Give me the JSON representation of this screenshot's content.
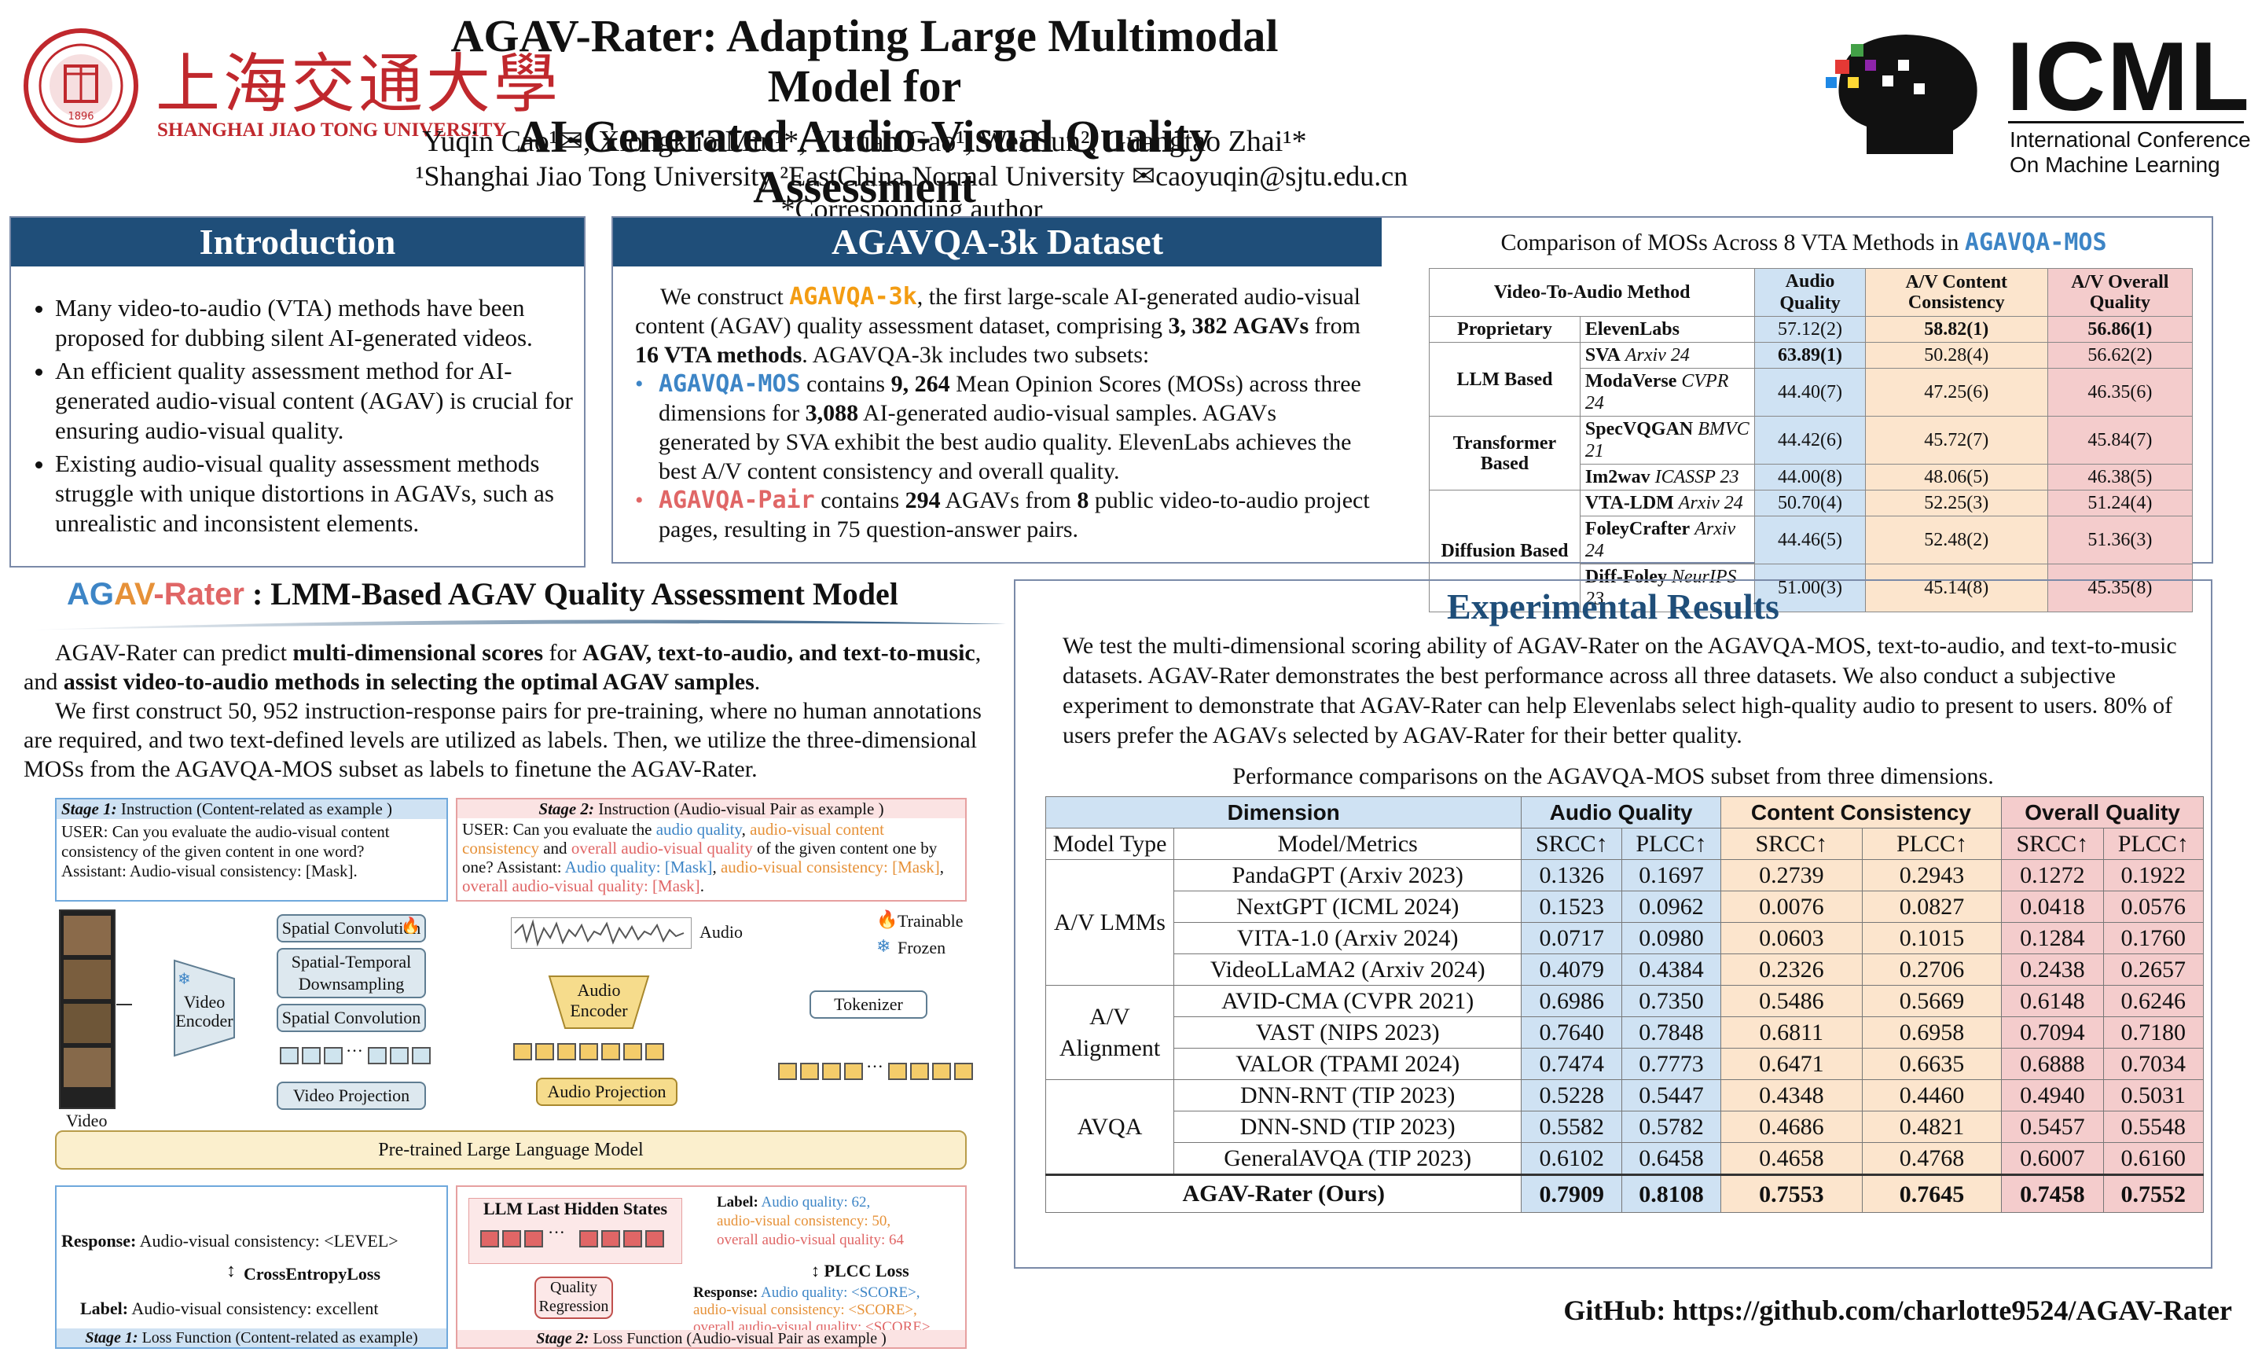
{
  "header": {
    "title_line1": "AGAV-Rater: Adapting Large Multimodal Model for",
    "title_line2": "AI-Generated Audio-Visual Quality Assessment",
    "authors": "Yuqin Cao¹✉, Xiongkuo Min¹*, Yixuan Gao¹, Wei Sun², Guangtao Zhai¹*",
    "affiliations": "¹Shanghai Jiao Tong University ²EastChina Normal University ✉caoyuqin@sjtu.edu.cn *Corresponding author",
    "left_logo_cn": "上海交通大學",
    "left_logo_en": "SHANGHAI JIAO TONG UNIVERSITY",
    "right_logo_main": "ICML",
    "right_logo_sub1": "International Conference",
    "right_logo_sub2": "On Machine Learning"
  },
  "intro": {
    "heading": "Introduction",
    "bullets": [
      "Many video-to-audio (VTA) methods have been proposed for dubbing silent AI-generated videos.",
      "An efficient quality assessment method for AI-generated audio-visual content (AGAV) is crucial for ensuring audio-visual quality.",
      "Existing audio-visual quality assessment methods struggle with unique distortions in AGAVs, such as unrealistic and inconsistent elements."
    ]
  },
  "dataset": {
    "heading": "AGAVQA-3k Dataset",
    "p_a": "We construct ",
    "name": "AGAVQA-3k",
    "p_b": ", the first large-scale AI-generated audio-visual content (AGAV) quality assessment dataset, comprising ",
    "count": "3, 382",
    "p_c": "AGAVs",
    "p_d": " from ",
    "methods": "16 VTA methods",
    "p_e": ".  AGAVQA-3k includes two subsets:",
    "mos_name": "AGAVQA-MOS",
    "mos_a": " contains ",
    "mos_count": "9, 264",
    "mos_b": " Mean Opinion Scores (MOSs) across three dimensions for ",
    "mos_samples": "3,088",
    "mos_c": " AI-generated audio-visual samples. AGAVs generated by SVA exhibit the best audio quality. ElevenLabs achieves the best A/V content consistency and overall quality.",
    "pair_name": "AGAVQA-Pair",
    "pair_a": " contains ",
    "pair_count": "294",
    "pair_b": " AGAVs from ",
    "pair_pages": "8",
    "pair_c": " public video-to-audio project pages, resulting in 75 question-answer pairs."
  },
  "comparison": {
    "caption": "Comparison of MOSs Across 8 VTA Methods in ",
    "caption_name": "AGAVQA-MOS",
    "headers": [
      "Video-To-Audio Method",
      "Audio Quality",
      "A/V Content Consistency",
      "A/V Overall Quality"
    ],
    "groups": [
      {
        "group": "Proprietary",
        "rows": [
          {
            "method": "ElevenLabs",
            "venue": "",
            "aq": "57.12(2)",
            "cc": "58.82(1)",
            "oq": "56.86(1)"
          }
        ]
      },
      {
        "group": "LLM Based",
        "rows": [
          {
            "method": "SVA",
            "venue": "Arxiv 24",
            "aq": "63.89(1)",
            "cc": "50.28(4)",
            "oq": "56.62(2)"
          },
          {
            "method": "ModaVerse",
            "venue": "CVPR 24",
            "aq": "44.40(7)",
            "cc": "47.25(6)",
            "oq": "46.35(6)"
          }
        ]
      },
      {
        "group": "Transformer Based",
        "rows": [
          {
            "method": "SpecVQGAN",
            "venue": "BMVC 21",
            "aq": "44.42(6)",
            "cc": "45.72(7)",
            "oq": "45.84(7)"
          },
          {
            "method": "Im2wav",
            "venue": "ICASSP 23",
            "aq": "44.00(8)",
            "cc": "48.06(5)",
            "oq": "46.38(5)"
          }
        ]
      },
      {
        "group": "Diffusion Based",
        "rows": [
          {
            "method": "VTA-LDM",
            "venue": "Arxiv 24",
            "aq": "50.70(4)",
            "cc": "52.25(3)",
            "oq": "51.24(4)"
          },
          {
            "method": "FoleyCrafter",
            "venue": "Arxiv 24",
            "aq": "44.46(5)",
            "cc": "52.48(2)",
            "oq": "51.36(3)"
          },
          {
            "method": "Diff-Foley",
            "venue": "NeurIPS 23",
            "aq": "51.00(3)",
            "cc": "45.14(8)",
            "oq": "45.35(8)"
          }
        ]
      }
    ]
  },
  "model": {
    "heading_ag": "AG",
    "heading_av": "AV",
    "heading_rater": "-Rater",
    "heading_rest": " : LMM-Based AGAV Quality Assessment Model",
    "p1_a": "AGAV-Rater can predict ",
    "p1_b": "multi-dimensional scores",
    "p1_c": " for ",
    "p1_d": "AGAV, text-to-audio, and text-to-music",
    "p1_e": ", and ",
    "p1_f": "assist video-to-audio methods in selecting the optimal AGAV samples",
    "p1_g": ".",
    "p2": "We first construct 50, 952 instruction-response pairs for pre-training, where no human annotations are required, and two text-defined levels are utilized as labels. Then, we utilize the three-dimensional MOSs from the AGAVQA-MOS subset as labels to finetune the AGAV-Rater."
  },
  "diagram": {
    "s1_title_a": "Stage 1:",
    "s1_title_b": " Instruction (Content-related as example )",
    "s1_text": "USER: Can you evaluate the audio-visual content consistency of the given content in one word?",
    "s1_asst": "Assistant: Audio-visual consistency: [Mask].",
    "s2_title_a": "Stage 2:",
    "s2_title_b": " Instruction (Audio-visual Pair as example )",
    "s2_u1": "USER: Can you evaluate the ",
    "s2_aq": "audio quality",
    "s2_sep": ", ",
    "s2_cc": "audio-visual content consistency",
    "s2_and": " and ",
    "s2_oq": "overall audio-visual quality",
    "s2_u2": " of the given content one by one? Assistant: ",
    "s2_aq2": "Audio quality: [Mask]",
    "s2_cc2": "audio-visual consistency: [Mask]",
    "s2_oq2": "overall audio-visual quality: [Mask]",
    "s2_dot": ".",
    "video_label": "Video",
    "video_encoder": "Video Encoder",
    "spatial_conv1": "Spatial Convolution",
    "st_down": "Spatial-Temporal Downsampling",
    "spatial_conv2": "Spatial Convolution",
    "video_proj": "Video Projection",
    "audio_label": "Audio",
    "audio_encoder": "Audio Encoder",
    "audio_proj": "Audio Projection",
    "tokenizer": "Tokenizer",
    "trainable": "Trainable",
    "frozen": "Frozen",
    "llm": "Pre-trained Large Language Model",
    "resp_a": "Response:",
    "resp_b": " Audio-visual consistency: <LEVEL>",
    "ce_loss": "CrossEntropyLoss",
    "label_a": "Label:",
    "label_b": " Audio-visual consistency: excellent",
    "s1_loss_a": "Stage 1:",
    "s1_loss_b": " Loss Function (Content-related as example)",
    "llm_hidden": "LLM Last Hidden States",
    "lbl2_a": "Label:",
    "lbl2_aq": "Audio quality: 62,",
    "lbl2_cc": "audio-visual consistency: 50,",
    "lbl2_oq": "overall audio-visual quality: 64",
    "plcc": "PLCC Loss",
    "quality_reg": "Quality Regression",
    "resp2_a": "Response:",
    "resp2_aq": "Audio quality: <SCORE>,",
    "resp2_cc": "audio-visual consistency: <SCORE>,",
    "resp2_oq": "overall audio-visual quality: <SCORE>",
    "s2_loss_a": "Stage 2:",
    "s2_loss_b": " Loss Function (Audio-visual Pair as example )"
  },
  "results": {
    "heading": "Experimental Results",
    "text": "We test the multi-dimensional scoring ability of AGAV-Rater on the AGAVQA-MOS,  text-to-audio, and text-to-music datasets. AGAV-Rater demonstrates the best performance across all three datasets. We also conduct a subjective experiment to demonstrate that AGAV-Rater can help Elevenlabs select high-quality audio to present to users. 80% of users prefer the AGAVs selected by AGAV-Rater for their better quality.",
    "caption": "Performance comparisons on the AGAVQA-MOS subset from three dimensions.",
    "h_dimension": "Dimension",
    "h_aq": "Audio Quality",
    "h_cc": "Content Consistency",
    "h_oq": "Overall Quality",
    "h_type": "Model Type",
    "h_metrics": "Model/Metrics",
    "srcc": "SRCC↑",
    "plcc": "PLCC↑",
    "groups": [
      {
        "type": "A/V LMMs",
        "rows": [
          {
            "model": "PandaGPT (Arxiv 2023)",
            "v": [
              "0.1326",
              "0.1697",
              "0.2739",
              "0.2943",
              "0.1272",
              "0.1922"
            ]
          },
          {
            "model": "NextGPT (ICML 2024)",
            "v": [
              "0.1523",
              "0.0962",
              "0.0076",
              "0.0827",
              "0.0418",
              "0.0576"
            ]
          },
          {
            "model": "VITA-1.0 (Arxiv 2024)",
            "v": [
              "0.0717",
              "0.0980",
              "0.0603",
              "0.1015",
              "0.1284",
              "0.1760"
            ]
          },
          {
            "model": "VideoLLaMA2 (Arxiv 2024)",
            "v": [
              "0.4079",
              "0.4384",
              "0.2326",
              "0.2706",
              "0.2438",
              "0.2657"
            ]
          }
        ]
      },
      {
        "type": "A/V Alignment",
        "rows": [
          {
            "model": "AVID-CMA (CVPR 2021)",
            "v": [
              "0.6986",
              "0.7350",
              "0.5486",
              "0.5669",
              "0.6148",
              "0.6246"
            ]
          },
          {
            "model": "VAST (NIPS 2023)",
            "v": [
              "0.7640",
              "0.7848",
              "0.6811",
              "0.6958",
              "0.7094",
              "0.7180"
            ]
          },
          {
            "model": "VALOR (TPAMI 2024)",
            "v": [
              "0.7474",
              "0.7773",
              "0.6471",
              "0.6635",
              "0.6888",
              "0.7034"
            ]
          }
        ]
      },
      {
        "type": "AVQA",
        "rows": [
          {
            "model": "DNN-RNT (TIP 2023)",
            "v": [
              "0.5228",
              "0.5447",
              "0.4348",
              "0.4460",
              "0.4940",
              "0.5031"
            ]
          },
          {
            "model": "DNN-SND (TIP 2023)",
            "v": [
              "0.5582",
              "0.5782",
              "0.4686",
              "0.4821",
              "0.5457",
              "0.5548"
            ]
          },
          {
            "model": "GeneralAVQA (TIP 2023)",
            "v": [
              "0.6102",
              "0.6458",
              "0.4658",
              "0.4768",
              "0.6007",
              "0.6160"
            ]
          }
        ]
      }
    ],
    "ours": {
      "model": "AGAV-Rater (Ours)",
      "v": [
        "0.7909",
        "0.8108",
        "0.7553",
        "0.7645",
        "0.7458",
        "0.7552"
      ]
    }
  },
  "footer": {
    "github": "GitHub: https://github.com/charlotte9524/AGAV-Rater"
  },
  "colors": {
    "navy": "#1f4e79",
    "blue": "#3d85c6",
    "orange": "#e06030",
    "pink": "#e06666"
  }
}
